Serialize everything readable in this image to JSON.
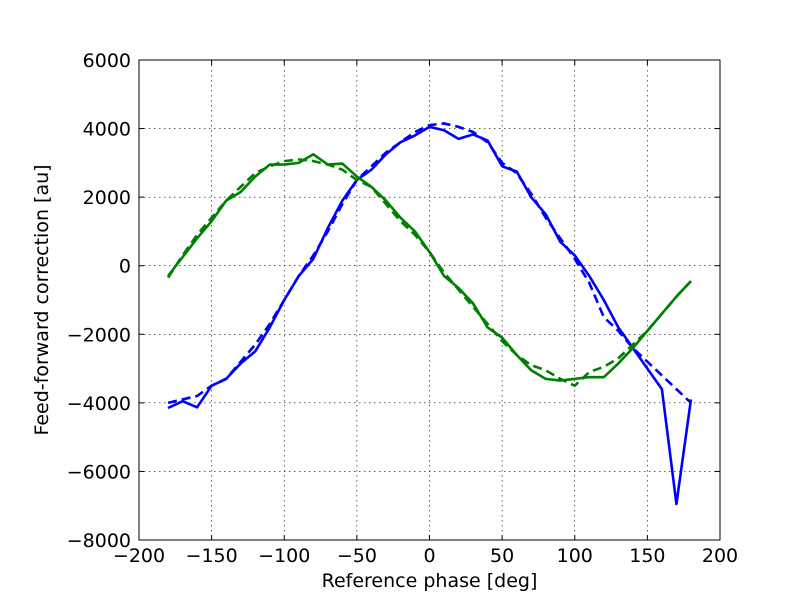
{
  "chart_data": {
    "type": "line",
    "title": "",
    "xlabel": "Reference phase [deg]",
    "ylabel": "Feed-forward correction [au]",
    "xlim": [
      -200,
      200
    ],
    "ylim": [
      -8000,
      6000
    ],
    "xticks": [
      -200,
      -150,
      -100,
      -50,
      0,
      50,
      100,
      150,
      200
    ],
    "yticks": [
      -8000,
      -6000,
      -4000,
      -2000,
      0,
      2000,
      4000,
      6000
    ],
    "xtick_labels": [
      "−200",
      "−150",
      "−100",
      "−50",
      "0",
      "50",
      "100",
      "150",
      "200"
    ],
    "ytick_labels": [
      "−8000",
      "−6000",
      "−4000",
      "−2000",
      "0",
      "2000",
      "4000",
      "6000"
    ],
    "grid": true,
    "series": [
      {
        "color": "#0000ff",
        "style": "solid",
        "x": [
          -180,
          -170,
          -160,
          -150,
          -140,
          -130,
          -120,
          -110,
          -100,
          -90,
          -80,
          -70,
          -60,
          -50,
          -40,
          -30,
          -20,
          -10,
          0,
          10,
          20,
          30,
          40,
          50,
          60,
          70,
          80,
          90,
          100,
          110,
          120,
          130,
          140,
          150,
          160,
          170,
          180
        ],
        "y": [
          -4150,
          -3950,
          -4130,
          -3500,
          -3300,
          -2850,
          -2500,
          -1800,
          -1000,
          -300,
          200,
          1100,
          1900,
          2500,
          2800,
          3250,
          3600,
          3800,
          4050,
          3950,
          3700,
          3830,
          3650,
          2900,
          2750,
          2000,
          1500,
          700,
          300,
          -300,
          -1000,
          -1800,
          -2400,
          -3000,
          -3600,
          -6950,
          -3900
        ]
      },
      {
        "color": "#0000ff",
        "style": "dashed",
        "x": [
          -180,
          -170,
          -160,
          -150,
          -140,
          -130,
          -120,
          -110,
          -100,
          -90,
          -80,
          -70,
          -60,
          -50,
          -40,
          -30,
          -20,
          -10,
          0,
          10,
          20,
          30,
          40,
          50,
          60,
          70,
          80,
          90,
          100,
          110,
          120,
          130,
          140,
          150,
          160,
          170,
          180
        ],
        "y": [
          -4000,
          -3900,
          -3800,
          -3500,
          -3300,
          -2800,
          -2300,
          -1700,
          -1000,
          -300,
          300,
          1000,
          1800,
          2500,
          2900,
          3300,
          3600,
          3900,
          4100,
          4150,
          4050,
          3900,
          3600,
          3000,
          2700,
          2100,
          1400,
          800,
          200,
          -500,
          -1500,
          -1900,
          -2400,
          -2800,
          -3200,
          -3600,
          -4000
        ]
      },
      {
        "color": "#008000",
        "style": "solid",
        "x": [
          -180,
          -170,
          -160,
          -150,
          -140,
          -130,
          -120,
          -110,
          -100,
          -90,
          -80,
          -70,
          -60,
          -50,
          -40,
          -30,
          -20,
          -10,
          0,
          10,
          20,
          30,
          40,
          50,
          60,
          70,
          80,
          90,
          100,
          110,
          120,
          130,
          140,
          150,
          160,
          170,
          180
        ],
        "y": [
          -300,
          250,
          800,
          1300,
          1900,
          2150,
          2600,
          2950,
          2950,
          3000,
          3250,
          2950,
          2980,
          2600,
          2300,
          1900,
          1400,
          1000,
          400,
          -300,
          -650,
          -1100,
          -1800,
          -2100,
          -2600,
          -3050,
          -3300,
          -3350,
          -3300,
          -3250,
          -3250,
          -2850,
          -2400,
          -1900,
          -1400,
          -900,
          -450
        ]
      },
      {
        "color": "#008000",
        "style": "dashed",
        "x": [
          -180,
          -170,
          -160,
          -150,
          -140,
          -130,
          -120,
          -110,
          -100,
          -90,
          -80,
          -70,
          -60,
          -50,
          -40,
          -30,
          -20,
          -10,
          0,
          10,
          20,
          30,
          40,
          50,
          60,
          70,
          80,
          90,
          100,
          110,
          120,
          130,
          140,
          150,
          160,
          170,
          180
        ],
        "y": [
          -350,
          300,
          900,
          1400,
          1900,
          2300,
          2700,
          2900,
          3050,
          3100,
          3050,
          2950,
          2800,
          2500,
          2300,
          1800,
          1300,
          900,
          400,
          -200,
          -700,
          -1200,
          -1700,
          -2200,
          -2600,
          -2900,
          -3050,
          -3300,
          -3500,
          -3100,
          -2950,
          -2700,
          -2300,
          -1900,
          -1400,
          -900,
          -450
        ]
      }
    ]
  }
}
